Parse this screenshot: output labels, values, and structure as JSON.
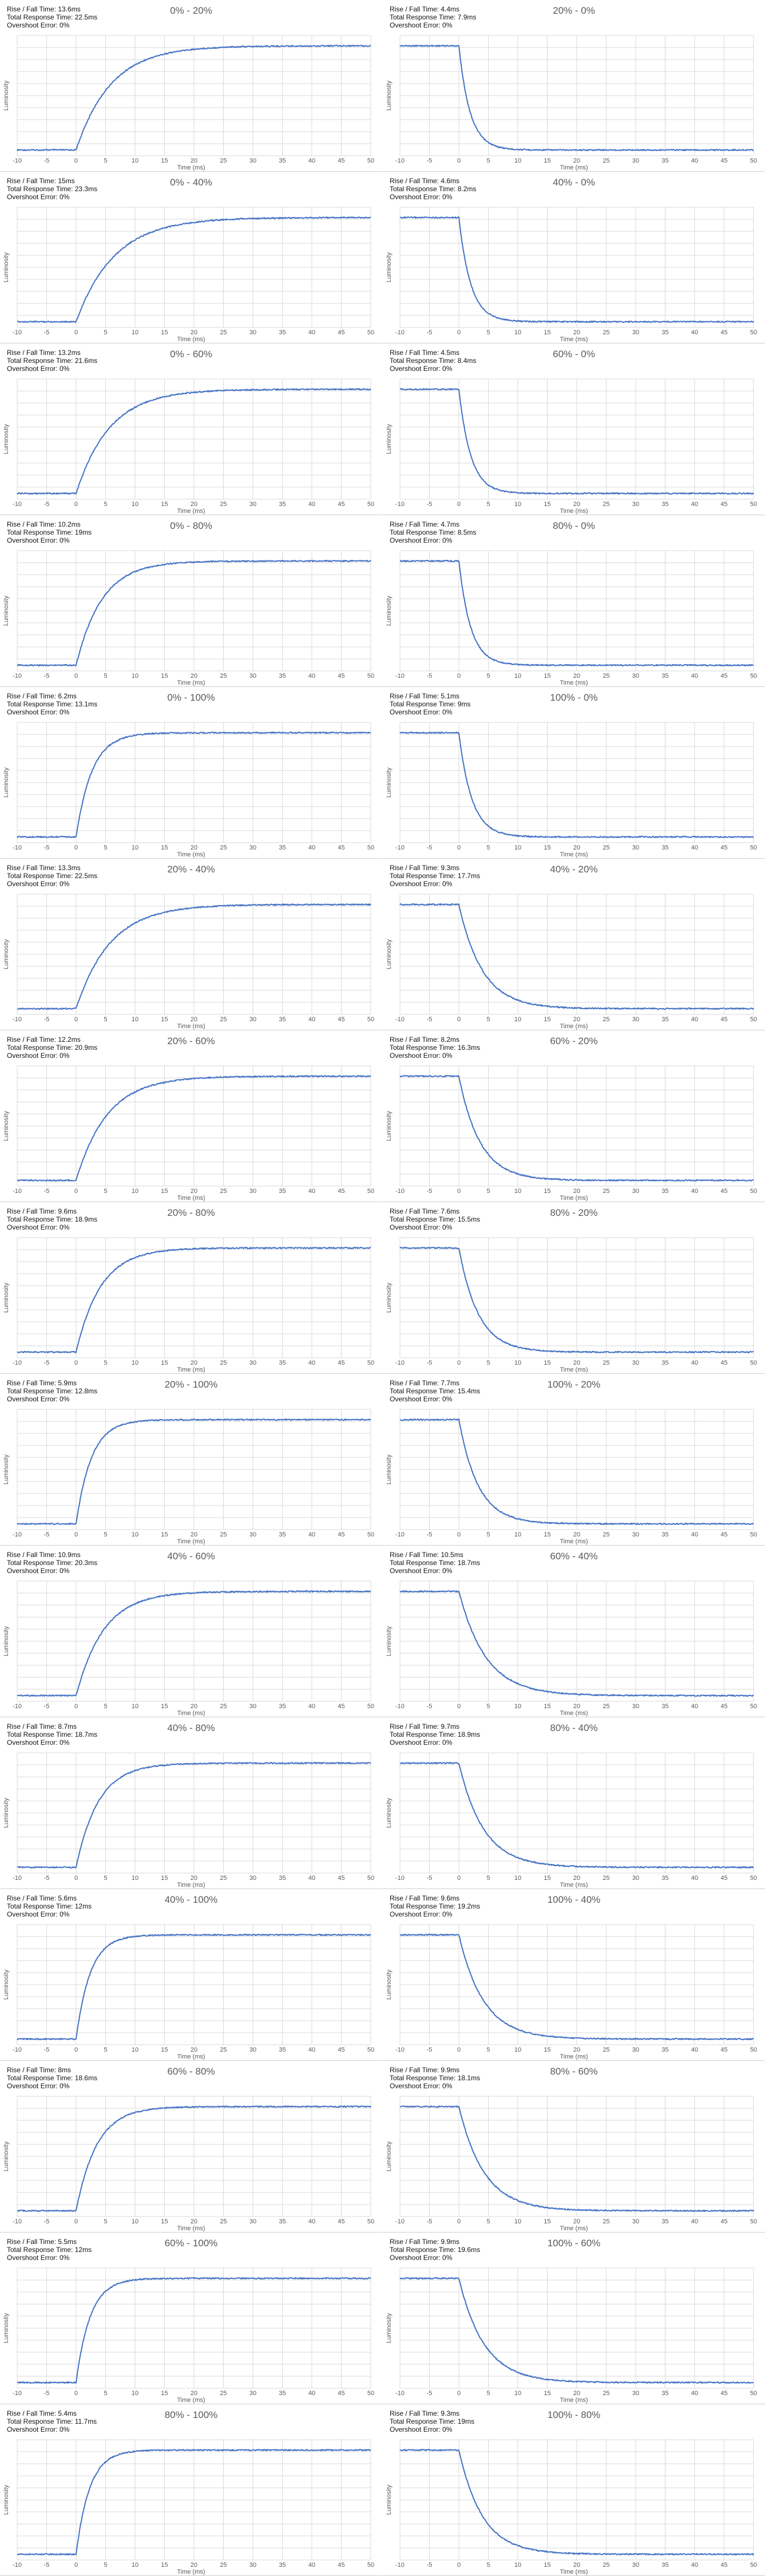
{
  "colors": {
    "series": "#4472c4",
    "grid": "#d9d9d9",
    "text": "#595959"
  },
  "chart_data": [
    {
      "type": "line",
      "title": "0% - 20%",
      "rise_fall": "Rise / Fall Time: 13.6ms",
      "total": "Total Response Time: 22.5ms",
      "overshoot": "Overshoot Error: 0%",
      "direction": "rise",
      "tau": 5.9,
      "xlabel": "Time (ms)",
      "ylabel": "Luminosity",
      "xlim": [
        -10,
        50
      ],
      "xticks": [
        -10,
        -5,
        0,
        5,
        10,
        15,
        20,
        25,
        30,
        35,
        40,
        45,
        50
      ]
    },
    {
      "type": "line",
      "title": "20% - 0%",
      "rise_fall": "Rise / Fall Time: 4.4ms",
      "total": "Total Response Time: 7.9ms",
      "overshoot": "Overshoot Error: 0%",
      "direction": "fall",
      "tau": 1.9,
      "xlabel": "Time (ms)",
      "ylabel": "Luminosity",
      "xlim": [
        -10,
        50
      ],
      "xticks": [
        -10,
        -5,
        0,
        5,
        10,
        15,
        20,
        25,
        30,
        35,
        40,
        45,
        50
      ]
    },
    {
      "type": "line",
      "title": "0% - 40%",
      "rise_fall": "Rise / Fall Time: 15ms",
      "total": "Total Response Time: 23.3ms",
      "overshoot": "Overshoot Error: 0%",
      "direction": "rise",
      "tau": 6.5,
      "xlabel": "Time (ms)",
      "ylabel": "Luminosity",
      "xlim": [
        -10,
        50
      ],
      "xticks": [
        -10,
        -5,
        0,
        5,
        10,
        15,
        20,
        25,
        30,
        35,
        40,
        45,
        50
      ]
    },
    {
      "type": "line",
      "title": "40% - 0%",
      "rise_fall": "Rise / Fall Time: 4.6ms",
      "total": "Total Response Time: 8.2ms",
      "overshoot": "Overshoot Error: 0%",
      "direction": "fall",
      "tau": 2.0,
      "xlabel": "Time (ms)",
      "ylabel": "Luminosity",
      "xlim": [
        -10,
        50
      ],
      "xticks": [
        -10,
        -5,
        0,
        5,
        10,
        15,
        20,
        25,
        30,
        35,
        40,
        45,
        50
      ]
    },
    {
      "type": "line",
      "title": "0% - 60%",
      "rise_fall": "Rise / Fall Time: 13.2ms",
      "total": "Total Response Time: 21.6ms",
      "overshoot": "Overshoot Error: 0%",
      "direction": "rise",
      "tau": 5.7,
      "xlabel": "Time (ms)",
      "ylabel": "Luminosity",
      "xlim": [
        -10,
        50
      ],
      "xticks": [
        -10,
        -5,
        0,
        5,
        10,
        15,
        20,
        25,
        30,
        35,
        40,
        45,
        50
      ]
    },
    {
      "type": "line",
      "title": "60% - 0%",
      "rise_fall": "Rise / Fall Time: 4.5ms",
      "total": "Total Response Time: 8.4ms",
      "overshoot": "Overshoot Error: 0%",
      "direction": "fall",
      "tau": 2.0,
      "xlabel": "Time (ms)",
      "ylabel": "Luminosity",
      "xlim": [
        -10,
        50
      ],
      "xticks": [
        -10,
        -5,
        0,
        5,
        10,
        15,
        20,
        25,
        30,
        35,
        40,
        45,
        50
      ]
    },
    {
      "type": "line",
      "title": "0% - 80%",
      "rise_fall": "Rise / Fall Time: 10.2ms",
      "total": "Total Response Time: 19ms",
      "overshoot": "Overshoot Error: 0%",
      "direction": "rise",
      "tau": 4.4,
      "xlabel": "Time (ms)",
      "ylabel": "Luminosity",
      "xlim": [
        -10,
        50
      ],
      "xticks": [
        -10,
        -5,
        0,
        5,
        10,
        15,
        20,
        25,
        30,
        35,
        40,
        45,
        50
      ]
    },
    {
      "type": "line",
      "title": "80% - 0%",
      "rise_fall": "Rise / Fall Time: 4.7ms",
      "total": "Total Response Time: 8.5ms",
      "overshoot": "Overshoot Error: 0%",
      "direction": "fall",
      "tau": 2.0,
      "xlabel": "Time (ms)",
      "ylabel": "Luminosity",
      "xlim": [
        -10,
        50
      ],
      "xticks": [
        -10,
        -5,
        0,
        5,
        10,
        15,
        20,
        25,
        30,
        35,
        40,
        45,
        50
      ]
    },
    {
      "type": "line",
      "title": "0% - 100%",
      "rise_fall": "Rise / Fall Time: 6.2ms",
      "total": "Total Response Time: 13.1ms",
      "overshoot": "Overshoot Error: 0%",
      "direction": "rise",
      "tau": 2.7,
      "xlabel": "Time (ms)",
      "ylabel": "Luminosity",
      "xlim": [
        -10,
        50
      ],
      "xticks": [
        -10,
        -5,
        0,
        5,
        10,
        15,
        20,
        25,
        30,
        35,
        40,
        45,
        50
      ]
    },
    {
      "type": "line",
      "title": "100% - 0%",
      "rise_fall": "Rise / Fall Time: 5.1ms",
      "total": "Total Response Time: 9ms",
      "overshoot": "Overshoot Error: 0%",
      "direction": "fall",
      "tau": 2.2,
      "xlabel": "Time (ms)",
      "ylabel": "Luminosity",
      "xlim": [
        -10,
        50
      ],
      "xticks": [
        -10,
        -5,
        0,
        5,
        10,
        15,
        20,
        25,
        30,
        35,
        40,
        45,
        50
      ]
    },
    {
      "type": "line",
      "title": "20% - 40%",
      "rise_fall": "Rise / Fall Time: 13.3ms",
      "total": "Total Response Time: 22.5ms",
      "overshoot": "Overshoot Error: 0%",
      "direction": "rise",
      "tau": 5.8,
      "xlabel": "Time (ms)",
      "ylabel": "Luminosity",
      "xlim": [
        -10,
        50
      ],
      "xticks": [
        -10,
        -5,
        0,
        5,
        10,
        15,
        20,
        25,
        30,
        35,
        40,
        45,
        50
      ]
    },
    {
      "type": "line",
      "title": "40% - 20%",
      "rise_fall": "Rise / Fall Time: 9.3ms",
      "total": "Total Response Time: 17.7ms",
      "overshoot": "Overshoot Error: 0%",
      "direction": "fall",
      "tau": 4.0,
      "xlabel": "Time (ms)",
      "ylabel": "Luminosity",
      "xlim": [
        -10,
        50
      ],
      "xticks": [
        -10,
        -5,
        0,
        5,
        10,
        15,
        20,
        25,
        30,
        35,
        40,
        45,
        50
      ]
    },
    {
      "type": "line",
      "title": "20% - 60%",
      "rise_fall": "Rise / Fall Time: 12.2ms",
      "total": "Total Response Time: 20.9ms",
      "overshoot": "Overshoot Error: 0%",
      "direction": "rise",
      "tau": 5.3,
      "xlabel": "Time (ms)",
      "ylabel": "Luminosity",
      "xlim": [
        -10,
        50
      ],
      "xticks": [
        -10,
        -5,
        0,
        5,
        10,
        15,
        20,
        25,
        30,
        35,
        40,
        45,
        50
      ]
    },
    {
      "type": "line",
      "title": "60% - 20%",
      "rise_fall": "Rise / Fall Time: 8.2ms",
      "total": "Total Response Time: 16.3ms",
      "overshoot": "Overshoot Error: 0%",
      "direction": "fall",
      "tau": 3.6,
      "xlabel": "Time (ms)",
      "ylabel": "Luminosity",
      "xlim": [
        -10,
        50
      ],
      "xticks": [
        -10,
        -5,
        0,
        5,
        10,
        15,
        20,
        25,
        30,
        35,
        40,
        45,
        50
      ]
    },
    {
      "type": "line",
      "title": "20% - 80%",
      "rise_fall": "Rise / Fall Time: 9.6ms",
      "total": "Total Response Time: 18.9ms",
      "overshoot": "Overshoot Error: 0%",
      "direction": "rise",
      "tau": 4.2,
      "xlabel": "Time (ms)",
      "ylabel": "Luminosity",
      "xlim": [
        -10,
        50
      ],
      "xticks": [
        -10,
        -5,
        0,
        5,
        10,
        15,
        20,
        25,
        30,
        35,
        40,
        45,
        50
      ]
    },
    {
      "type": "line",
      "title": "80% - 20%",
      "rise_fall": "Rise / Fall Time: 7.6ms",
      "total": "Total Response Time: 15.5ms",
      "overshoot": "Overshoot Error: 0%",
      "direction": "fall",
      "tau": 3.3,
      "xlabel": "Time (ms)",
      "ylabel": "Luminosity",
      "xlim": [
        -10,
        50
      ],
      "xticks": [
        -10,
        -5,
        0,
        5,
        10,
        15,
        20,
        25,
        30,
        35,
        40,
        45,
        50
      ]
    },
    {
      "type": "line",
      "title": "20% - 100%",
      "rise_fall": "Rise / Fall Time: 5.9ms",
      "total": "Total Response Time: 12.8ms",
      "overshoot": "Overshoot Error: 0%",
      "direction": "rise",
      "tau": 2.6,
      "xlabel": "Time (ms)",
      "ylabel": "Luminosity",
      "xlim": [
        -10,
        50
      ],
      "xticks": [
        -10,
        -5,
        0,
        5,
        10,
        15,
        20,
        25,
        30,
        35,
        40,
        45,
        50
      ]
    },
    {
      "type": "line",
      "title": "100% - 20%",
      "rise_fall": "Rise / Fall Time: 7.7ms",
      "total": "Total Response Time: 15.4ms",
      "overshoot": "Overshoot Error: 0%",
      "direction": "fall",
      "tau": 3.3,
      "xlabel": "Time (ms)",
      "ylabel": "Luminosity",
      "xlim": [
        -10,
        50
      ],
      "xticks": [
        -10,
        -5,
        0,
        5,
        10,
        15,
        20,
        25,
        30,
        35,
        40,
        45,
        50
      ]
    },
    {
      "type": "line",
      "title": "40% - 60%",
      "rise_fall": "Rise / Fall Time: 10.9ms",
      "total": "Total Response Time: 20.3ms",
      "overshoot": "Overshoot Error: 0%",
      "direction": "rise",
      "tau": 4.7,
      "xlabel": "Time (ms)",
      "ylabel": "Luminosity",
      "xlim": [
        -10,
        50
      ],
      "xticks": [
        -10,
        -5,
        0,
        5,
        10,
        15,
        20,
        25,
        30,
        35,
        40,
        45,
        50
      ]
    },
    {
      "type": "line",
      "title": "60% - 40%",
      "rise_fall": "Rise / Fall Time: 10.5ms",
      "total": "Total Response Time: 18.7ms",
      "overshoot": "Overshoot Error: 0%",
      "direction": "fall",
      "tau": 4.6,
      "xlabel": "Time (ms)",
      "ylabel": "Luminosity",
      "xlim": [
        -10,
        50
      ],
      "xticks": [
        -10,
        -5,
        0,
        5,
        10,
        15,
        20,
        25,
        30,
        35,
        40,
        45,
        50
      ]
    },
    {
      "type": "line",
      "title": "40% - 80%",
      "rise_fall": "Rise / Fall Time: 8.7ms",
      "total": "Total Response Time: 18.7ms",
      "overshoot": "Overshoot Error: 0%",
      "direction": "rise",
      "tau": 3.8,
      "xlabel": "Time (ms)",
      "ylabel": "Luminosity",
      "xlim": [
        -10,
        50
      ],
      "xticks": [
        -10,
        -5,
        0,
        5,
        10,
        15,
        20,
        25,
        30,
        35,
        40,
        45,
        50
      ]
    },
    {
      "type": "line",
      "title": "80% - 40%",
      "rise_fall": "Rise / Fall Time: 9.7ms",
      "total": "Total Response Time: 18.9ms",
      "overshoot": "Overshoot Error: 0%",
      "direction": "fall",
      "tau": 4.2,
      "xlabel": "Time (ms)",
      "ylabel": "Luminosity",
      "xlim": [
        -10,
        50
      ],
      "xticks": [
        -10,
        -5,
        0,
        5,
        10,
        15,
        20,
        25,
        30,
        35,
        40,
        45,
        50
      ]
    },
    {
      "type": "line",
      "title": "40% - 100%",
      "rise_fall": "Rise / Fall Time: 5.6ms",
      "total": "Total Response Time: 12ms",
      "overshoot": "Overshoot Error: 0%",
      "direction": "rise",
      "tau": 2.4,
      "xlabel": "Time (ms)",
      "ylabel": "Luminosity",
      "xlim": [
        -10,
        50
      ],
      "xticks": [
        -10,
        -5,
        0,
        5,
        10,
        15,
        20,
        25,
        30,
        35,
        40,
        45,
        50
      ]
    },
    {
      "type": "line",
      "title": "100% - 40%",
      "rise_fall": "Rise / Fall Time: 9.6ms",
      "total": "Total Response Time: 19.2ms",
      "overshoot": "Overshoot Error: 0%",
      "direction": "fall",
      "tau": 4.2,
      "xlabel": "Time (ms)",
      "ylabel": "Luminosity",
      "xlim": [
        -10,
        50
      ],
      "xticks": [
        -10,
        -5,
        0,
        5,
        10,
        15,
        20,
        25,
        30,
        35,
        40,
        45,
        50
      ]
    },
    {
      "type": "line",
      "title": "60% - 80%",
      "rise_fall": "Rise / Fall Time: 8ms",
      "total": "Total Response Time: 18.6ms",
      "overshoot": "Overshoot Error: 0%",
      "direction": "rise",
      "tau": 3.5,
      "xlabel": "Time (ms)",
      "ylabel": "Luminosity",
      "xlim": [
        -10,
        50
      ],
      "xticks": [
        -10,
        -5,
        0,
        5,
        10,
        15,
        20,
        25,
        30,
        35,
        40,
        45,
        50
      ]
    },
    {
      "type": "line",
      "title": "80% - 60%",
      "rise_fall": "Rise / Fall Time: 9.9ms",
      "total": "Total Response Time: 18.1ms",
      "overshoot": "Overshoot Error: 0%",
      "direction": "fall",
      "tau": 4.3,
      "xlabel": "Time (ms)",
      "ylabel": "Luminosity",
      "xlim": [
        -10,
        50
      ],
      "xticks": [
        -10,
        -5,
        0,
        5,
        10,
        15,
        20,
        25,
        30,
        35,
        40,
        45,
        50
      ]
    },
    {
      "type": "line",
      "title": "60% - 100%",
      "rise_fall": "Rise / Fall Time: 5.5ms",
      "total": "Total Response Time: 12ms",
      "overshoot": "Overshoot Error: 0%",
      "direction": "rise",
      "tau": 2.4,
      "xlabel": "Time (ms)",
      "ylabel": "Luminosity",
      "xlim": [
        -10,
        50
      ],
      "xticks": [
        -10,
        -5,
        0,
        5,
        10,
        15,
        20,
        25,
        30,
        35,
        40,
        45,
        50
      ]
    },
    {
      "type": "line",
      "title": "100% - 60%",
      "rise_fall": "Rise / Fall Time: 9.9ms",
      "total": "Total Response Time: 19.6ms",
      "overshoot": "Overshoot Error: 0%",
      "direction": "fall",
      "tau": 4.3,
      "xlabel": "Time (ms)",
      "ylabel": "Luminosity",
      "xlim": [
        -10,
        50
      ],
      "xticks": [
        -10,
        -5,
        0,
        5,
        10,
        15,
        20,
        25,
        30,
        35,
        40,
        45,
        50
      ]
    },
    {
      "type": "line",
      "title": "80% - 100%",
      "rise_fall": "Rise / Fall Time: 5.4ms",
      "total": "Total Response Time: 11.7ms",
      "overshoot": "Overshoot Error: 0%",
      "direction": "rise",
      "tau": 2.3,
      "xlabel": "Time (ms)",
      "ylabel": "Luminosity",
      "xlim": [
        -10,
        50
      ],
      "xticks": [
        -10,
        -5,
        0,
        5,
        10,
        15,
        20,
        25,
        30,
        35,
        40,
        45,
        50
      ]
    },
    {
      "type": "line",
      "title": "100% - 80%",
      "rise_fall": "Rise / Fall Time: 9.3ms",
      "total": "Total Response Time: 19ms",
      "overshoot": "Overshoot Error: 0%",
      "direction": "fall",
      "tau": 4.0,
      "xlabel": "Time (ms)",
      "ylabel": "Luminosity",
      "xlim": [
        -10,
        50
      ],
      "xticks": [
        -10,
        -5,
        0,
        5,
        10,
        15,
        20,
        25,
        30,
        35,
        40,
        45,
        50
      ]
    }
  ]
}
